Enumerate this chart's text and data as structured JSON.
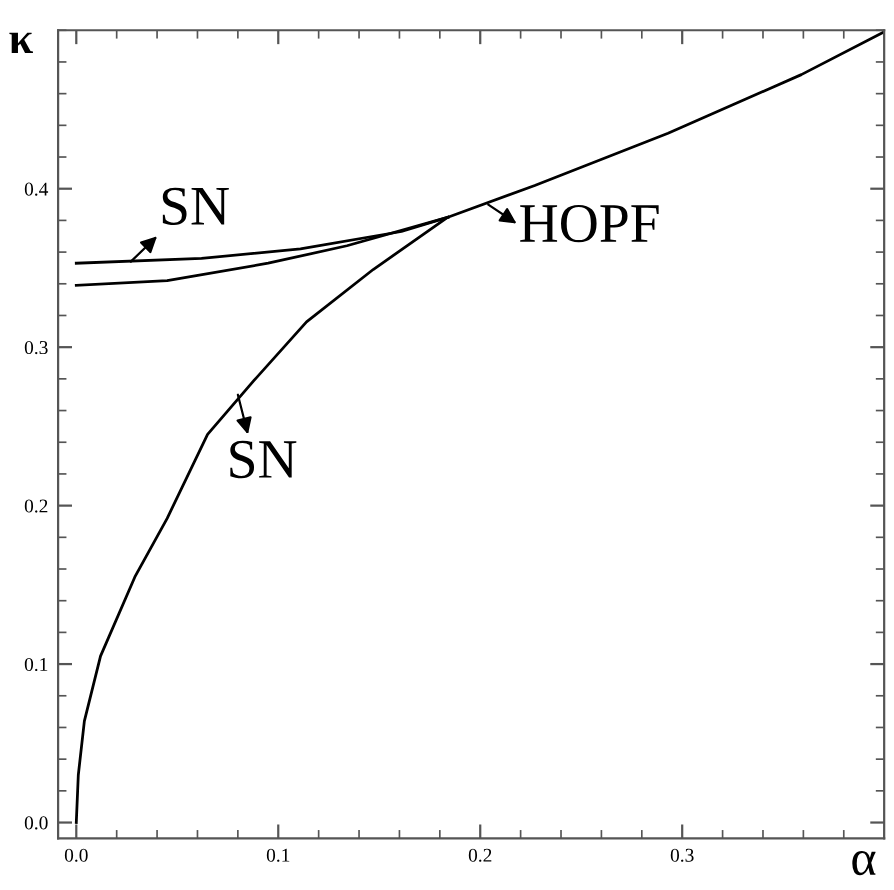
{
  "chart_data": {
    "type": "line",
    "xlabel": "α",
    "ylabel": "κ",
    "xlim": [
      -0.009,
      0.4
    ],
    "ylim": [
      -0.01,
      0.5
    ],
    "xticks": [
      {
        "value": 0,
        "label": "0.0"
      },
      0.1,
      0.2,
      0.3
    ],
    "yticks": [
      {
        "value": 0,
        "label": "0.0"
      },
      0.1,
      0.2,
      0.3,
      0.4
    ],
    "grid": false,
    "legend": false,
    "marker": "none",
    "line_style": "solid",
    "series": [
      {
        "color": "#000000",
        "x": [
          0,
          0.001,
          0.004,
          0.012,
          0.029,
          0.045,
          0.065,
          0.088,
          0.114,
          0.147,
          0.184,
          0.227,
          0.293,
          0.359,
          0.4
        ],
        "values": [
          0,
          0.03,
          0.064,
          0.105,
          0.155,
          0.192,
          0.245,
          0.279,
          0.316,
          0.349,
          0.382,
          0.402,
          0.435,
          0.472,
          0.499
        ]
      },
      {
        "color": "#000000",
        "x": [
          0,
          0.062,
          0.111,
          0.161,
          0.184
        ],
        "values": [
          0.353,
          0.356,
          0.362,
          0.373,
          0.382
        ]
      },
      {
        "color": "#000000",
        "x": [
          0,
          0.045,
          0.095,
          0.134,
          0.184
        ],
        "values": [
          0.339,
          0.342,
          0.353,
          0.364,
          0.382
        ]
      }
    ],
    "annotations": [
      {
        "text": "SN",
        "x": 0.027,
        "y": 0.354
      },
      {
        "text": "HOPF",
        "x": 0.204,
        "y": 0.39
      },
      {
        "text": "SN",
        "x": 0.08,
        "y": 0.27
      }
    ]
  }
}
